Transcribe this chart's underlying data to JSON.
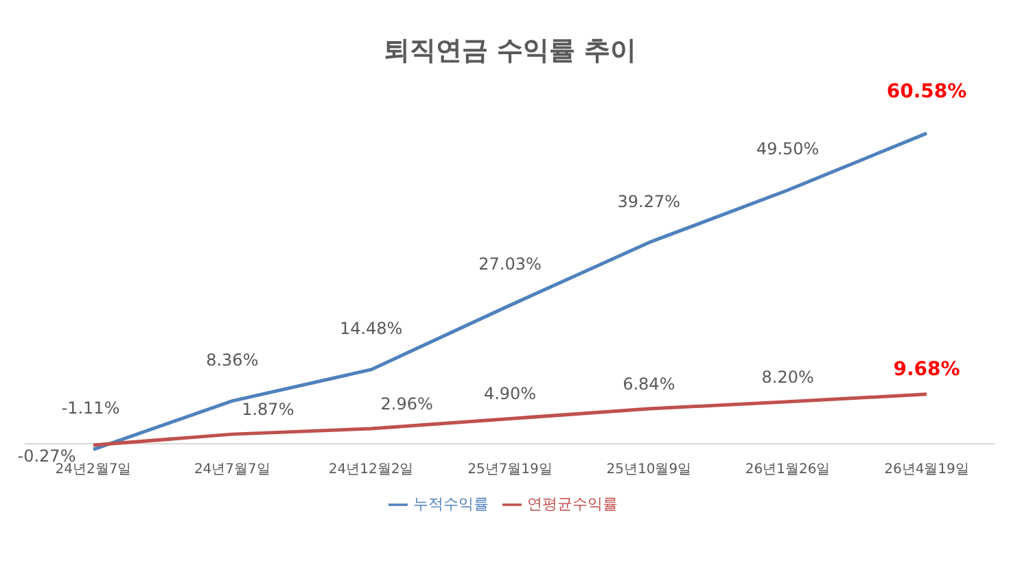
{
  "chart_data": {
    "type": "line",
    "title": "퇴직연금 수익률 추이",
    "categories": [
      "24년2월7일",
      "24년7월7일",
      "24년12월2일",
      "25년7월19일",
      "25년10월9일",
      "26년1월26일",
      "26년4월19일"
    ],
    "series": [
      {
        "name": "누적수익률",
        "color": "#4f81bd",
        "values": [
          -1.11,
          8.36,
          14.48,
          27.03,
          39.27,
          49.5,
          60.58
        ],
        "value_labels": [
          "-1.11%",
          "8.36%",
          "14.48%",
          "27.03%",
          "39.27%",
          "49.50%",
          "60.58%"
        ]
      },
      {
        "name": "연평균수익률",
        "color": "#c0504d",
        "values": [
          -0.27,
          1.87,
          2.96,
          4.9,
          6.84,
          8.2,
          9.68
        ],
        "value_labels": [
          "-0.27%",
          "1.87%",
          "2.96%",
          "4.90%",
          "6.84%",
          "8.20%",
          "9.68%"
        ]
      }
    ],
    "legend": "bottom",
    "marker": "none",
    "grid": false
  }
}
